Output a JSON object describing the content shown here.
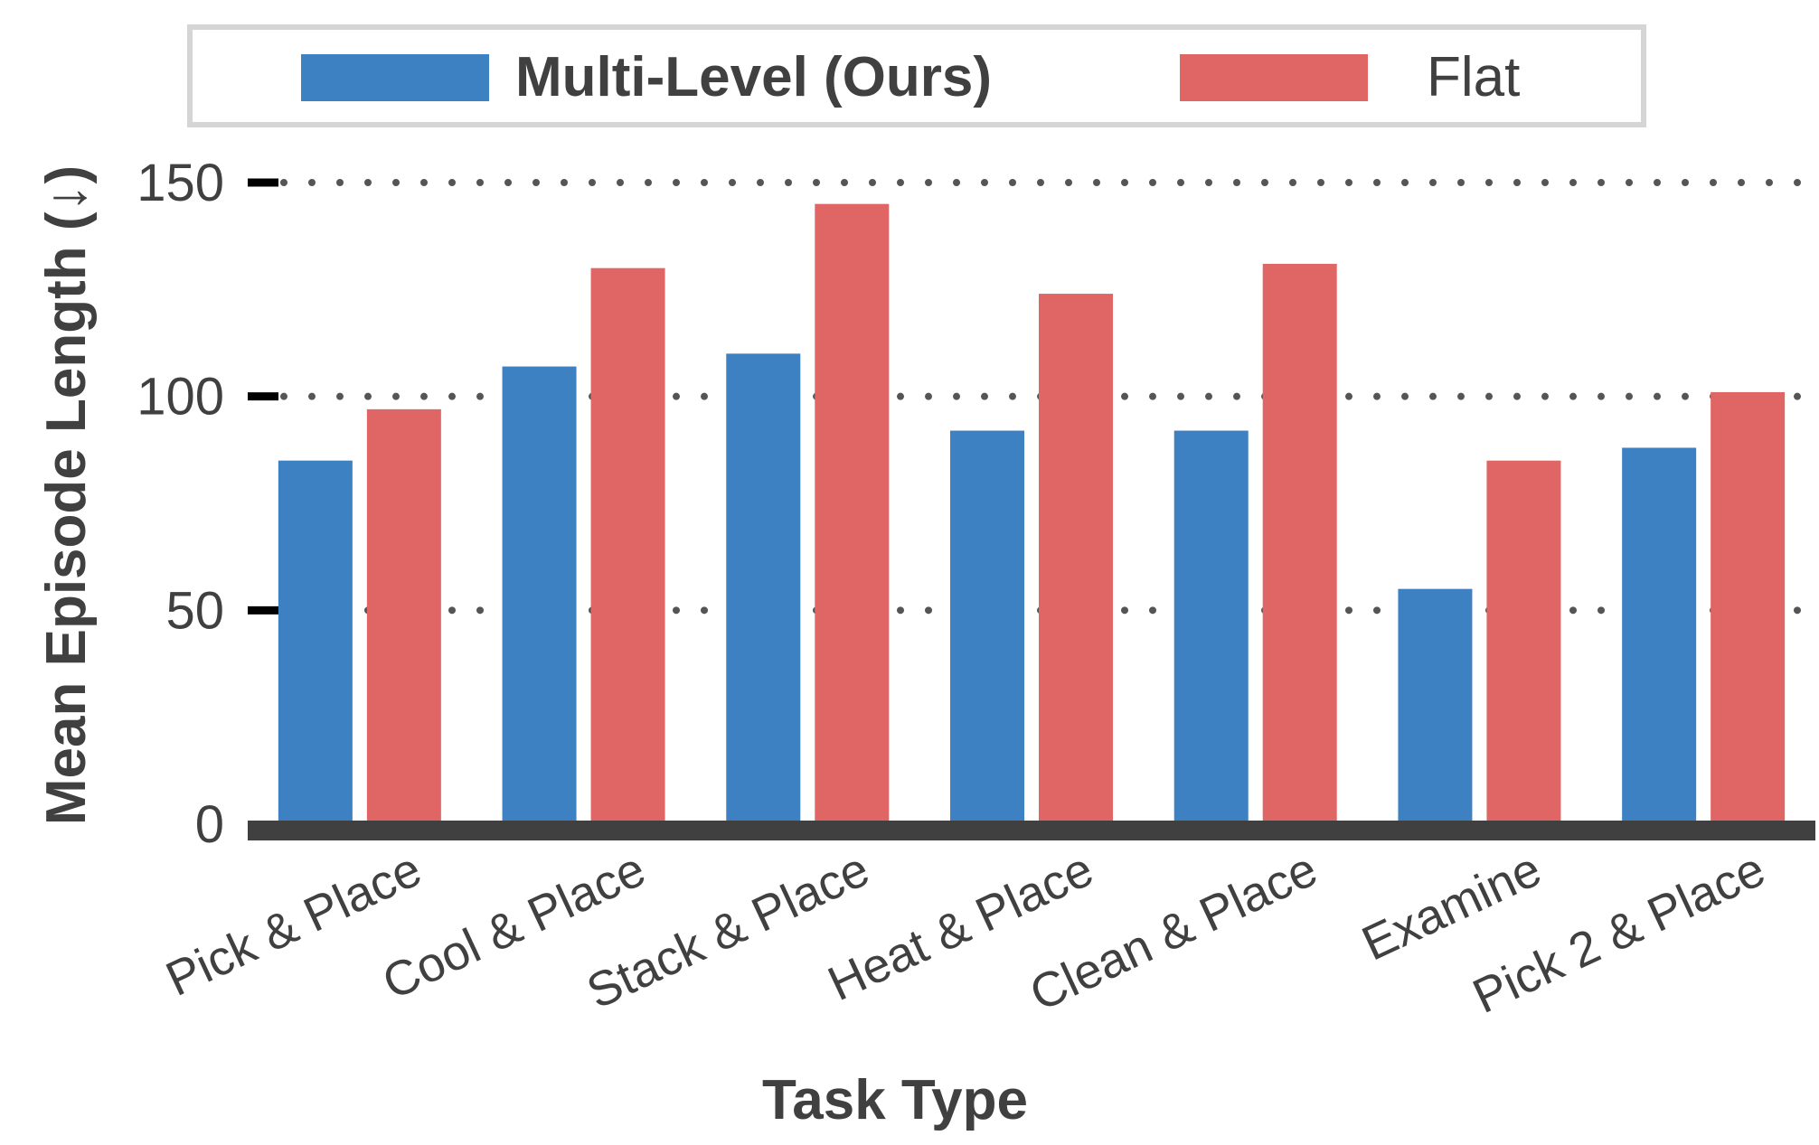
{
  "chart_data": {
    "type": "bar",
    "xlabel": "Task Type",
    "ylabel": "Mean Episode Length (↓)",
    "categories": [
      "Pick & Place",
      "Cool & Place",
      "Stack & Place",
      "Heat & Place",
      "Clean & Place",
      "Examine",
      "Pick 2 & Place"
    ],
    "series": [
      {
        "name": "Multi-Level (Ours)",
        "color": "#3d81c3",
        "values": [
          85,
          107,
          110,
          92,
          92,
          55,
          88
        ]
      },
      {
        "name": "Flat",
        "color": "#e06666",
        "values": [
          97,
          130,
          145,
          124,
          131,
          85,
          101
        ]
      }
    ],
    "ylim": [
      0,
      150
    ],
    "yticks": [
      0,
      50,
      100,
      150
    ],
    "grid": true,
    "grid_style": "dotted",
    "legend_position": "top"
  }
}
